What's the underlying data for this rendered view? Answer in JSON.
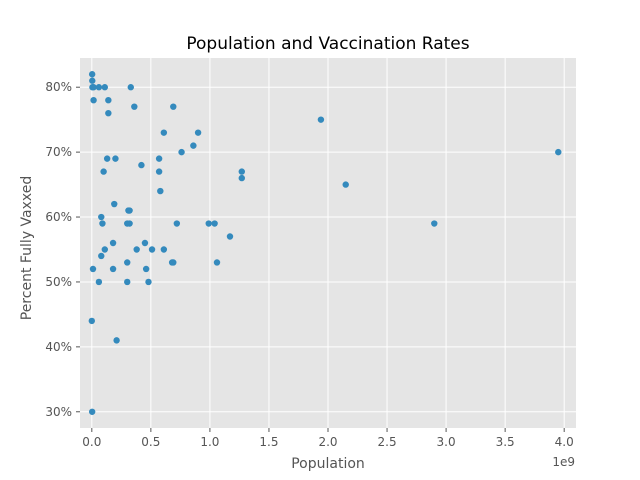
{
  "chart_data": {
    "type": "scatter",
    "title": "Population and Vaccination Rates",
    "xlabel": "Population",
    "ylabel": "Percent Fully Vaxxed",
    "x_offset_label": "1e9",
    "x_ticks": [
      0.0,
      0.5,
      1.0,
      1.5,
      2.0,
      2.5,
      3.0,
      3.5,
      4.0
    ],
    "x_tick_labels": [
      "0.0",
      "0.5",
      "1.0",
      "1.5",
      "2.0",
      "2.5",
      "3.0",
      "3.5",
      "4.0"
    ],
    "y_ticks": [
      30,
      40,
      50,
      60,
      70,
      80
    ],
    "y_tick_labels": [
      "30%",
      "40%",
      "50%",
      "60%",
      "70%",
      "80%"
    ],
    "xlim": [
      -0.1,
      4.1
    ],
    "ylim": [
      27.5,
      84.5
    ],
    "x_unit_multiplier": 1000000000,
    "grid": true,
    "colors": {
      "marker": "#348abd",
      "plot_background": "#e5e5e5",
      "grid": "#ffffff"
    },
    "points": [
      {
        "x": 0.003,
        "y": 82
      },
      {
        "x": 0.004,
        "y": 81
      },
      {
        "x": 0.005,
        "y": 80
      },
      {
        "x": 0.015,
        "y": 80
      },
      {
        "x": 0.06,
        "y": 80
      },
      {
        "x": 0.11,
        "y": 80
      },
      {
        "x": 0.33,
        "y": 80
      },
      {
        "x": 0.015,
        "y": 78
      },
      {
        "x": 0.14,
        "y": 78
      },
      {
        "x": 0.14,
        "y": 76
      },
      {
        "x": 0.36,
        "y": 77
      },
      {
        "x": 0.69,
        "y": 77
      },
      {
        "x": 1.94,
        "y": 75
      },
      {
        "x": 0.61,
        "y": 73
      },
      {
        "x": 0.9,
        "y": 73
      },
      {
        "x": 0.86,
        "y": 71
      },
      {
        "x": 3.95,
        "y": 70
      },
      {
        "x": 0.76,
        "y": 70
      },
      {
        "x": 0.13,
        "y": 69
      },
      {
        "x": 0.2,
        "y": 69
      },
      {
        "x": 0.57,
        "y": 69
      },
      {
        "x": 0.42,
        "y": 68
      },
      {
        "x": 0.1,
        "y": 67
      },
      {
        "x": 0.57,
        "y": 67
      },
      {
        "x": 1.27,
        "y": 67
      },
      {
        "x": 1.27,
        "y": 66
      },
      {
        "x": 2.15,
        "y": 65
      },
      {
        "x": 0.58,
        "y": 64
      },
      {
        "x": 0.19,
        "y": 62
      },
      {
        "x": 0.31,
        "y": 61
      },
      {
        "x": 0.32,
        "y": 61
      },
      {
        "x": 0.08,
        "y": 60
      },
      {
        "x": 0.09,
        "y": 59
      },
      {
        "x": 0.3,
        "y": 59
      },
      {
        "x": 0.32,
        "y": 59
      },
      {
        "x": 0.72,
        "y": 59
      },
      {
        "x": 0.99,
        "y": 59
      },
      {
        "x": 1.04,
        "y": 59
      },
      {
        "x": 2.9,
        "y": 59
      },
      {
        "x": 1.17,
        "y": 57
      },
      {
        "x": 0.18,
        "y": 56
      },
      {
        "x": 0.45,
        "y": 56
      },
      {
        "x": 0.11,
        "y": 55
      },
      {
        "x": 0.38,
        "y": 55
      },
      {
        "x": 0.51,
        "y": 55
      },
      {
        "x": 0.61,
        "y": 55
      },
      {
        "x": 0.08,
        "y": 54
      },
      {
        "x": 0.3,
        "y": 53
      },
      {
        "x": 0.68,
        "y": 53
      },
      {
        "x": 0.69,
        "y": 53
      },
      {
        "x": 1.06,
        "y": 53
      },
      {
        "x": 0.01,
        "y": 52
      },
      {
        "x": 0.18,
        "y": 52
      },
      {
        "x": 0.46,
        "y": 52
      },
      {
        "x": 0.06,
        "y": 50
      },
      {
        "x": 0.3,
        "y": 50
      },
      {
        "x": 0.48,
        "y": 50
      },
      {
        "x": 0.0,
        "y": 44
      },
      {
        "x": 0.21,
        "y": 41
      },
      {
        "x": 0.003,
        "y": 30
      }
    ]
  }
}
